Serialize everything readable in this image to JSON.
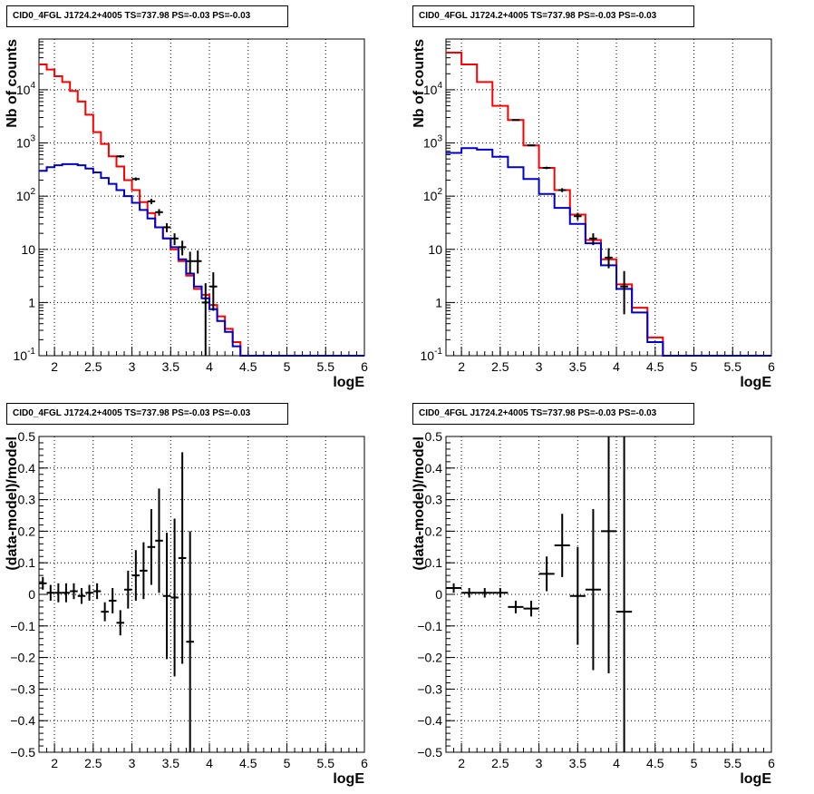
{
  "panels": [
    {
      "title": "CID0_4FGL J1724.2+4005 TS=737.98 PS=-0.03 PS=-0.03"
    },
    {
      "title": "CID0_4FGL J1724.2+4005 TS=737.98 PS=-0.03 PS=-0.03"
    },
    {
      "title": "CID0_4FGL J1724.2+4005 TS=737.98 PS=-0.03 PS=-0.03"
    },
    {
      "title": "CID0_4FGL J1724.2+4005 TS=737.98 PS=-0.03 PS=-0.03"
    }
  ],
  "colors": {
    "total_model": "#ff0000",
    "source_model": "#0000cc",
    "data": "#000000"
  },
  "chart_data": [
    {
      "type": "line",
      "log_y": true,
      "grid": true,
      "xlabel": "logE",
      "ylabel": "Nb of counts",
      "xlim": [
        1.8,
        6.0
      ],
      "ylim": [
        0.1,
        90000
      ],
      "x_ticks": [
        "2",
        "2.5",
        "3",
        "3.5",
        "4",
        "4.5",
        "5",
        "5.5",
        "6"
      ],
      "y_ticks": [
        "10^{-1}",
        "1",
        "10",
        "10^{2}",
        "10^{3}",
        "10^{4}"
      ],
      "bin_edges": [
        1.8,
        1.9,
        2.0,
        2.1,
        2.2,
        2.3,
        2.4,
        2.5,
        2.6,
        2.7,
        2.8,
        2.9,
        3.0,
        3.1,
        3.2,
        3.3,
        3.4,
        3.5,
        3.6,
        3.7,
        3.8,
        3.9,
        4.0,
        4.1,
        4.2,
        4.3,
        4.4,
        4.5,
        4.6,
        4.7,
        4.8,
        4.9,
        5.0,
        5.1,
        5.2,
        5.3,
        5.4,
        5.5,
        5.6,
        5.7,
        5.8,
        5.9,
        6.0
      ],
      "series": [
        {
          "role": "total_model",
          "values": [
            30000,
            24000,
            18000,
            14000,
            9500,
            6000,
            3400,
            1600,
            960,
            560,
            360,
            200,
            130,
            77,
            48,
            26,
            16,
            10,
            6,
            3.2,
            1.8,
            1.4,
            0.9,
            0.55,
            0.32,
            0.18,
            0.1,
            0.1,
            0.1,
            0.1,
            0.1,
            0.1,
            0.1,
            0.1,
            0.1,
            0.1,
            0.1,
            0.1,
            0.1,
            0.1,
            0.1,
            0.1
          ]
        },
        {
          "role": "source_model",
          "values": [
            300,
            350,
            380,
            400,
            400,
            380,
            330,
            280,
            220,
            170,
            130,
            100,
            75,
            55,
            38,
            26,
            16,
            11,
            6.5,
            3.5,
            2.0,
            1.2,
            0.75,
            0.45,
            0.28,
            0.15,
            0.1,
            0.1,
            0.1,
            0.1,
            0.1,
            0.1,
            0.1,
            0.1,
            0.1,
            0.1,
            0.1,
            0.1,
            0.1,
            0.1,
            0.1,
            0.1
          ]
        },
        {
          "role": "data",
          "points": [
            {
              "x": 2.85,
              "y": 560,
              "yerr_lo": 30,
              "yerr_hi": 30
            },
            {
              "x": 3.05,
              "y": 210,
              "yerr_lo": 15,
              "yerr_hi": 15
            },
            {
              "x": 3.25,
              "y": 80,
              "yerr_lo": 9,
              "yerr_hi": 9
            },
            {
              "x": 3.35,
              "y": 50,
              "yerr_lo": 7,
              "yerr_hi": 7
            },
            {
              "x": 3.45,
              "y": 26,
              "yerr_lo": 5,
              "yerr_hi": 5
            },
            {
              "x": 3.55,
              "y": 16,
              "yerr_lo": 4,
              "yerr_hi": 4
            },
            {
              "x": 3.65,
              "y": 11,
              "yerr_lo": 3.3,
              "yerr_hi": 3.5
            },
            {
              "x": 3.75,
              "y": 6,
              "yerr_lo": 2.5,
              "yerr_hi": 3
            },
            {
              "x": 3.85,
              "y": 6,
              "yerr_lo": 2.5,
              "yerr_hi": 3.5
            },
            {
              "x": 3.95,
              "y": 1,
              "yerr_lo": 0.9,
              "yerr_hi": 1.3
            },
            {
              "x": 4.05,
              "y": 2,
              "yerr_lo": 1.3,
              "yerr_hi": 1.7
            }
          ]
        }
      ]
    },
    {
      "type": "line",
      "log_y": true,
      "grid": true,
      "xlabel": "logE",
      "ylabel": "Nb of counts",
      "xlim": [
        1.8,
        6.0
      ],
      "ylim": [
        0.1,
        90000
      ],
      "x_ticks": [
        "2",
        "2.5",
        "3",
        "3.5",
        "4",
        "4.5",
        "5",
        "5.5",
        "6"
      ],
      "y_ticks": [
        "10^{-1}",
        "1",
        "10",
        "10^{2}",
        "10^{3}",
        "10^{4}"
      ],
      "bin_edges": [
        1.8,
        2.0,
        2.2,
        2.4,
        2.6,
        2.8,
        3.0,
        3.2,
        3.4,
        3.6,
        3.8,
        4.0,
        4.2,
        4.4,
        4.6,
        4.8,
        5.0,
        5.2,
        5.4,
        5.6,
        5.8,
        6.0
      ],
      "series": [
        {
          "role": "total_model",
          "values": [
            50000,
            30000,
            14000,
            5000,
            2700,
            900,
            340,
            130,
            45,
            15,
            6.5,
            2.2,
            0.8,
            0.22,
            0.1,
            0.1,
            0.1,
            0.1,
            0.1,
            0.1,
            0.1
          ]
        },
        {
          "role": "source_model",
          "values": [
            650,
            800,
            750,
            550,
            350,
            210,
            110,
            60,
            30,
            13,
            5,
            1.8,
            0.65,
            0.18,
            0.1,
            0.1,
            0.1,
            0.1,
            0.1,
            0.1,
            0.1
          ]
        },
        {
          "role": "data",
          "points": [
            {
              "x": 2.7,
              "y": 2700,
              "yerr_lo": 52,
              "yerr_hi": 52
            },
            {
              "x": 2.9,
              "y": 900,
              "yerr_lo": 30,
              "yerr_hi": 30
            },
            {
              "x": 3.1,
              "y": 340,
              "yerr_lo": 18,
              "yerr_hi": 18
            },
            {
              "x": 3.3,
              "y": 130,
              "yerr_lo": 11,
              "yerr_hi": 11
            },
            {
              "x": 3.5,
              "y": 42,
              "yerr_lo": 6.5,
              "yerr_hi": 6.5
            },
            {
              "x": 3.7,
              "y": 16,
              "yerr_lo": 4,
              "yerr_hi": 4
            },
            {
              "x": 3.9,
              "y": 7,
              "yerr_lo": 2.6,
              "yerr_hi": 3.5
            },
            {
              "x": 4.1,
              "y": 2,
              "yerr_lo": 1.4,
              "yerr_hi": 1.9
            }
          ]
        }
      ]
    },
    {
      "type": "scatter",
      "grid": true,
      "xlabel": "logE",
      "ylabel": "(data-model)/model",
      "xlim": [
        1.8,
        6.0
      ],
      "ylim": [
        -0.5,
        0.5
      ],
      "x_ticks": [
        "2",
        "2.5",
        "3",
        "3.5",
        "4",
        "4.5",
        "5",
        "5.5",
        "6"
      ],
      "y_ticks": [
        "−0.5",
        "−0.4",
        "−0.3",
        "−0.2",
        "−0.1",
        "0",
        "0.1",
        "0.2",
        "0.3",
        "0.4",
        "0.5"
      ],
      "series": [
        {
          "role": "data",
          "points": [
            {
              "x": 1.85,
              "y": 0.035,
              "err": 0.02,
              "xerr": 0.05
            },
            {
              "x": 1.95,
              "y": 0.005,
              "err": 0.025,
              "xerr": 0.05
            },
            {
              "x": 2.05,
              "y": 0.005,
              "err": 0.03,
              "xerr": 0.05
            },
            {
              "x": 2.15,
              "y": 0.005,
              "err": 0.03,
              "xerr": 0.05
            },
            {
              "x": 2.25,
              "y": 0.01,
              "err": 0.025,
              "xerr": 0.05
            },
            {
              "x": 2.35,
              "y": -0.005,
              "err": 0.025,
              "xerr": 0.05
            },
            {
              "x": 2.45,
              "y": 0.005,
              "err": 0.025,
              "xerr": 0.05
            },
            {
              "x": 2.55,
              "y": 0.01,
              "err": 0.025,
              "xerr": 0.05
            },
            {
              "x": 2.65,
              "y": -0.055,
              "err": 0.03,
              "xerr": 0.05
            },
            {
              "x": 2.75,
              "y": -0.02,
              "err": 0.04,
              "xerr": 0.05
            },
            {
              "x": 2.85,
              "y": -0.09,
              "err": 0.04,
              "xerr": 0.05
            },
            {
              "x": 2.95,
              "y": 0.015,
              "err": 0.06,
              "xerr": 0.05
            },
            {
              "x": 3.05,
              "y": 0.06,
              "err": 0.08,
              "xerr": 0.05
            },
            {
              "x": 3.15,
              "y": 0.075,
              "err": 0.09,
              "xerr": 0.05
            },
            {
              "x": 3.25,
              "y": 0.15,
              "err": 0.12,
              "xerr": 0.05
            },
            {
              "x": 3.35,
              "y": 0.17,
              "err": 0.165,
              "xerr": 0.05
            },
            {
              "x": 3.45,
              "y": -0.005,
              "err": 0.2,
              "xerr": 0.05
            },
            {
              "x": 3.55,
              "y": -0.01,
              "err": 0.25,
              "xerr": 0.05
            },
            {
              "x": 3.65,
              "y": 0.115,
              "err": 0.335,
              "xerr": 0.05
            },
            {
              "x": 3.75,
              "y": -0.15,
              "err": 0.35,
              "xerr": 0.05
            }
          ]
        }
      ]
    },
    {
      "type": "scatter",
      "grid": true,
      "xlabel": "logE",
      "ylabel": "(data-model)/model",
      "xlim": [
        1.8,
        6.0
      ],
      "ylim": [
        -0.5,
        0.5
      ],
      "x_ticks": [
        "2",
        "2.5",
        "3",
        "3.5",
        "4",
        "4.5",
        "5",
        "5.5",
        "6"
      ],
      "y_ticks": [
        "−0.5",
        "−0.4",
        "−0.3",
        "−0.2",
        "−0.1",
        "0",
        "0.1",
        "0.2",
        "0.3",
        "0.4",
        "0.5"
      ],
      "series": [
        {
          "role": "data",
          "points": [
            {
              "x": 1.9,
              "y": 0.02,
              "err": 0.015,
              "xerr": 0.1
            },
            {
              "x": 2.1,
              "y": 0.005,
              "err": 0.015,
              "xerr": 0.1
            },
            {
              "x": 2.3,
              "y": 0.005,
              "err": 0.015,
              "xerr": 0.1
            },
            {
              "x": 2.5,
              "y": 0.005,
              "err": 0.015,
              "xerr": 0.1
            },
            {
              "x": 2.7,
              "y": -0.04,
              "err": 0.02,
              "xerr": 0.1
            },
            {
              "x": 2.9,
              "y": -0.045,
              "err": 0.025,
              "xerr": 0.1
            },
            {
              "x": 3.1,
              "y": 0.065,
              "err": 0.055,
              "xerr": 0.1
            },
            {
              "x": 3.3,
              "y": 0.155,
              "err": 0.1,
              "xerr": 0.1
            },
            {
              "x": 3.5,
              "y": -0.005,
              "err": 0.155,
              "xerr": 0.1
            },
            {
              "x": 3.7,
              "y": 0.015,
              "err": 0.255,
              "xerr": 0.1
            },
            {
              "x": 3.9,
              "y": 0.2,
              "err": 0.45,
              "xerr": 0.1
            },
            {
              "x": 4.1,
              "y": -0.055,
              "err": 0.6,
              "xerr": 0.1
            }
          ]
        }
      ]
    }
  ]
}
